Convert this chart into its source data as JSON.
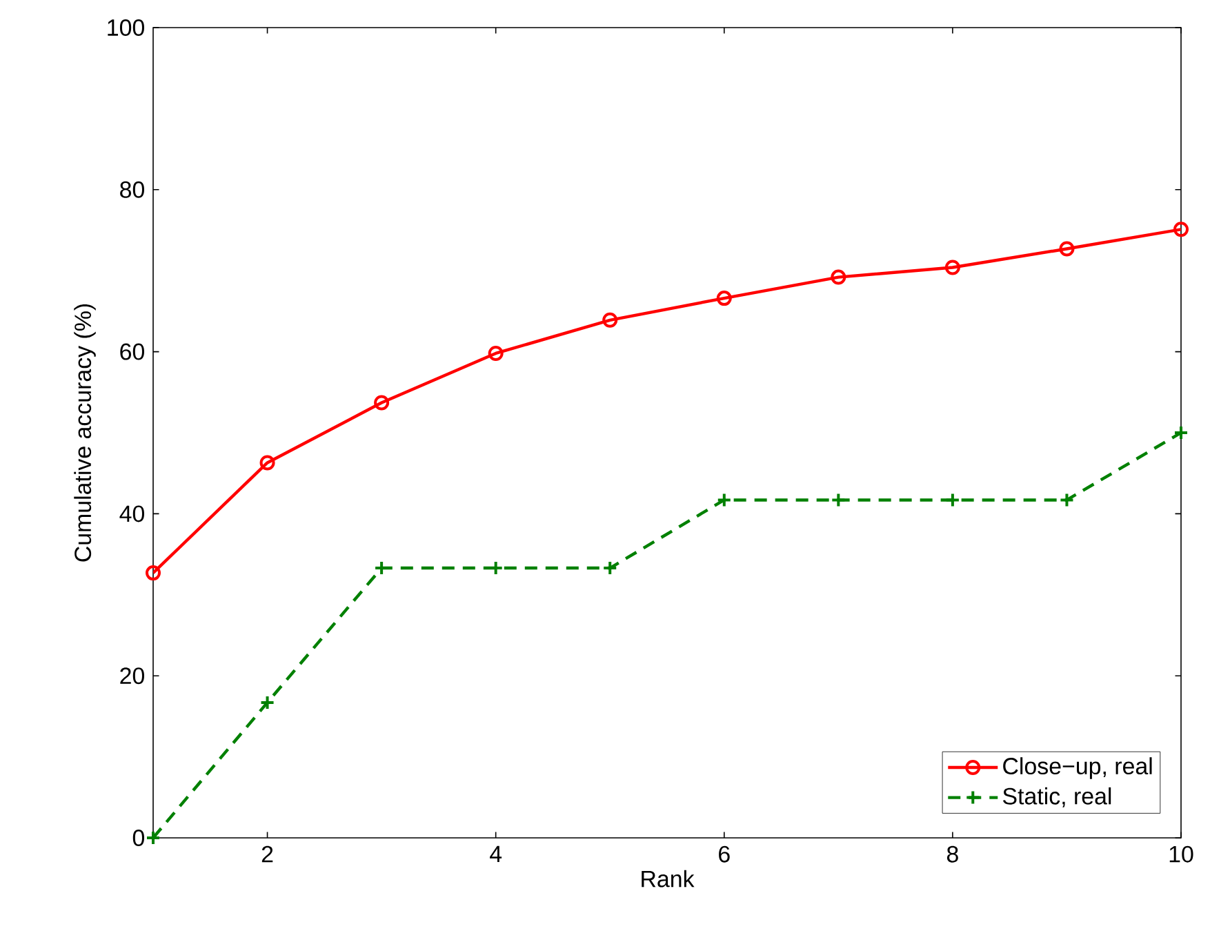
{
  "chart_data": {
    "type": "line",
    "xlabel": "Rank",
    "ylabel": "Cumulative accuracy (%)",
    "x": [
      1,
      2,
      3,
      4,
      5,
      6,
      7,
      8,
      9,
      10
    ],
    "series": [
      {
        "name": "Close−up, real",
        "color": "#ff0000",
        "marker": "circle",
        "line_style": "solid",
        "values": [
          32.7,
          46.3,
          53.7,
          59.8,
          63.9,
          66.6,
          69.2,
          70.4,
          72.7,
          75.1
        ]
      },
      {
        "name": "Static, real",
        "color": "#008000",
        "marker": "cross",
        "line_style": "dashed",
        "values": [
          0,
          16.7,
          33.3,
          33.3,
          33.3,
          41.7,
          41.7,
          41.7,
          41.7,
          50
        ]
      }
    ],
    "xlim": [
      1,
      10
    ],
    "xticks": [
      2,
      4,
      6,
      8,
      10
    ],
    "ylim": [
      0,
      100
    ],
    "yticks": [
      0,
      20,
      40,
      60,
      80,
      100
    ],
    "grid": false,
    "legend": "bottom right"
  }
}
